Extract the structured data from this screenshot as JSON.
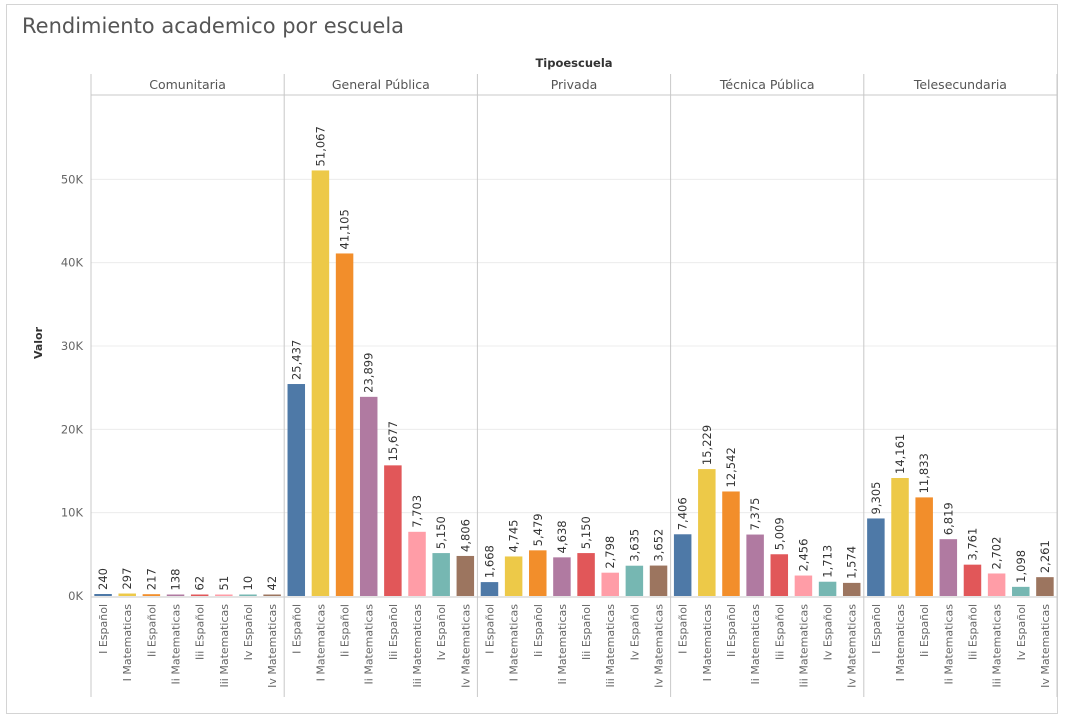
{
  "title": "Rendimiento academico por escuela",
  "chart_data": {
    "type": "bar",
    "title": "Rendimiento academico por escuela",
    "column_header": "Tipoescuela",
    "ylabel": "Valor",
    "ylim": [
      0,
      60000
    ],
    "yticks": [
      0,
      10000,
      20000,
      30000,
      40000,
      50000
    ],
    "ytick_labels": [
      "0K",
      "10K",
      "20K",
      "30K",
      "40K",
      "50K"
    ],
    "grid": true,
    "categories": [
      "I Español",
      "I Matematicas",
      "Ii Español",
      "Ii Matematicas",
      "Iii Español",
      "Iii Matematicas",
      "Iv Español",
      "Iv Matematicas"
    ],
    "colors": [
      "#4e79a7",
      "#edc948",
      "#f28e2b",
      "#b07aa1",
      "#e15759",
      "#ff9da7",
      "#76b7b2",
      "#9c755f"
    ],
    "panels": [
      {
        "name": "Comunitaria",
        "values": [
          240,
          297,
          217,
          138,
          62,
          51,
          10,
          42
        ]
      },
      {
        "name": "General Pública",
        "values": [
          25437,
          51067,
          41105,
          23899,
          15677,
          7703,
          5150,
          4806
        ]
      },
      {
        "name": "Privada",
        "values": [
          1668,
          4745,
          5479,
          4638,
          5150,
          2798,
          3635,
          3652
        ]
      },
      {
        "name": "Técnica Pública",
        "values": [
          7406,
          15229,
          12542,
          7375,
          5009,
          2456,
          1713,
          1574
        ]
      },
      {
        "name": "Telesecundaria",
        "values": [
          9305,
          14161,
          11833,
          6819,
          3761,
          2702,
          1098,
          2261
        ]
      }
    ]
  }
}
